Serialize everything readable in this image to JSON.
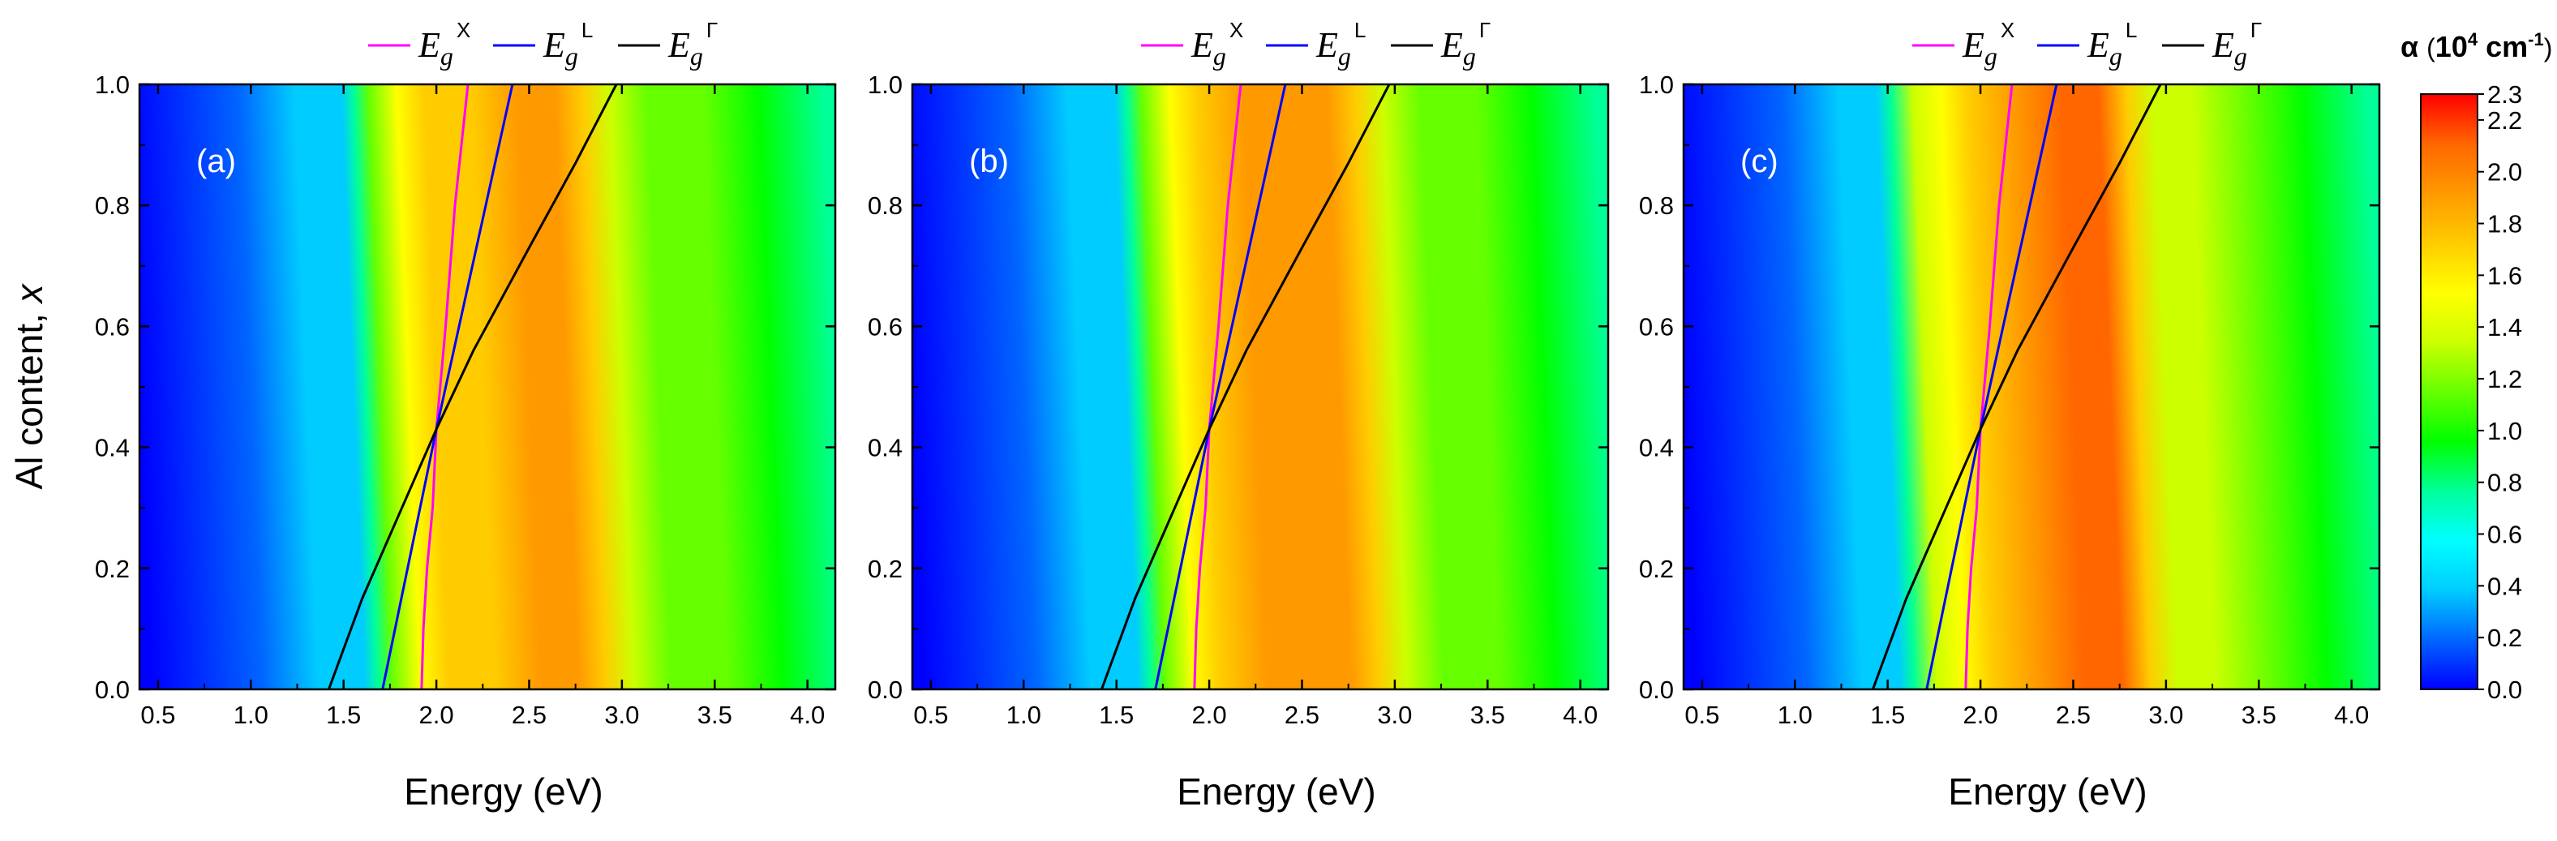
{
  "chart_data": {
    "type": "heatmap",
    "shared": {
      "xlabel": "Energy (eV)",
      "ylabel_main": "Al content, ",
      "ylabel_var": "x",
      "xlim": [
        0.4,
        4.15
      ],
      "ylim": [
        0.0,
        1.0
      ],
      "xticks": [
        0.5,
        1.0,
        1.5,
        2.0,
        2.5,
        3.0,
        3.5,
        4.0
      ],
      "xtick_labels": [
        "0.5",
        "1.0",
        "1.5",
        "2.0",
        "2.5",
        "3.0",
        "3.5",
        "4.0"
      ],
      "yticks": [
        0.0,
        0.2,
        0.4,
        0.6,
        0.8,
        1.0
      ],
      "ytick_labels": [
        "0.0",
        "0.2",
        "0.4",
        "0.6",
        "0.8",
        "1.0"
      ],
      "legend": [
        {
          "base": "E",
          "sub": "g",
          "sup": "X",
          "color": "#ff00ff"
        },
        {
          "base": "E",
          "sub": "g",
          "sup": "L",
          "color": "#0000ff"
        },
        {
          "base": "E",
          "sub": "g",
          "sup": "Γ",
          "color": "#000000"
        }
      ],
      "bandgap_lines": [
        {
          "name": "Eg_X",
          "color": "#ff00ff",
          "points": [
            [
              1.92,
              0.0
            ],
            [
              1.93,
              0.1
            ],
            [
              1.95,
              0.2
            ],
            [
              1.98,
              0.3
            ],
            [
              2.0,
              0.43
            ],
            [
              2.05,
              0.6
            ],
            [
              2.1,
              0.8
            ],
            [
              2.17,
              1.0
            ]
          ]
        },
        {
          "name": "Eg_L",
          "color": "#0000ff",
          "points": [
            [
              1.71,
              0.0
            ],
            [
              2.0,
              0.43
            ],
            [
              2.41,
              1.0
            ]
          ]
        },
        {
          "name": "Eg_Gamma",
          "color": "#000000",
          "points": [
            [
              1.42,
              0.0
            ],
            [
              1.6,
              0.15
            ],
            [
              1.8,
              0.29
            ],
            [
              2.0,
              0.43
            ],
            [
              2.2,
              0.56
            ],
            [
              2.5,
              0.73
            ],
            [
              2.75,
              0.87
            ],
            [
              2.97,
              1.0
            ]
          ]
        }
      ]
    },
    "colorbar": {
      "title_symbol": "α",
      "title_unit_pre": "10",
      "title_unit_exp1": "4",
      "title_unit_mid": " cm",
      "title_unit_exp2": "-1",
      "range": [
        0.0,
        2.3
      ],
      "ticks": [
        "0.0",
        "0.2",
        "0.4",
        "0.6",
        "0.8",
        "1.0",
        "1.2",
        "1.4",
        "1.6",
        "1.8",
        "2.0",
        "2.2",
        "2.3"
      ],
      "colors": [
        "#0000ff",
        "#0066ff",
        "#00ccff",
        "#00ffff",
        "#00ff99",
        "#00ff00",
        "#66ff00",
        "#ccff00",
        "#ffff00",
        "#ffcc00",
        "#ff9900",
        "#ff6600",
        "#ff0000"
      ]
    },
    "panels": [
      {
        "label": "(a)",
        "absorption_profile": [
          [
            0.4,
            0.0
          ],
          [
            1.0,
            0.15
          ],
          [
            1.3,
            0.3
          ],
          [
            1.55,
            0.45
          ],
          [
            1.62,
            0.7
          ],
          [
            1.7,
            1.2
          ],
          [
            1.85,
            1.5
          ],
          [
            2.0,
            1.7
          ],
          [
            2.25,
            1.8
          ],
          [
            2.5,
            1.95
          ],
          [
            2.7,
            1.9
          ],
          [
            2.85,
            1.7
          ],
          [
            3.0,
            1.35
          ],
          [
            3.2,
            1.2
          ],
          [
            3.5,
            1.1
          ],
          [
            3.8,
            0.95
          ],
          [
            4.15,
            0.75
          ]
        ]
      },
      {
        "label": "(b)",
        "absorption_profile": [
          [
            0.4,
            0.0
          ],
          [
            1.0,
            0.15
          ],
          [
            1.3,
            0.3
          ],
          [
            1.55,
            0.45
          ],
          [
            1.62,
            0.7
          ],
          [
            1.7,
            1.2
          ],
          [
            1.85,
            1.5
          ],
          [
            2.0,
            1.7
          ],
          [
            2.25,
            1.85
          ],
          [
            2.5,
            2.0
          ],
          [
            2.7,
            1.95
          ],
          [
            2.85,
            1.7
          ],
          [
            3.0,
            1.35
          ],
          [
            3.2,
            1.2
          ],
          [
            3.5,
            1.1
          ],
          [
            3.8,
            0.95
          ],
          [
            4.15,
            0.75
          ]
        ]
      },
      {
        "label": "(c)",
        "absorption_profile": [
          [
            0.4,
            0.0
          ],
          [
            1.0,
            0.15
          ],
          [
            1.3,
            0.3
          ],
          [
            1.5,
            0.45
          ],
          [
            1.58,
            0.75
          ],
          [
            1.7,
            1.3
          ],
          [
            1.85,
            1.6
          ],
          [
            2.0,
            1.8
          ],
          [
            2.25,
            1.95
          ],
          [
            2.5,
            2.15
          ],
          [
            2.7,
            2.05
          ],
          [
            2.85,
            1.8
          ],
          [
            3.0,
            1.4
          ],
          [
            3.2,
            1.25
          ],
          [
            3.5,
            1.12
          ],
          [
            3.8,
            0.95
          ],
          [
            4.15,
            0.75
          ]
        ]
      }
    ]
  }
}
